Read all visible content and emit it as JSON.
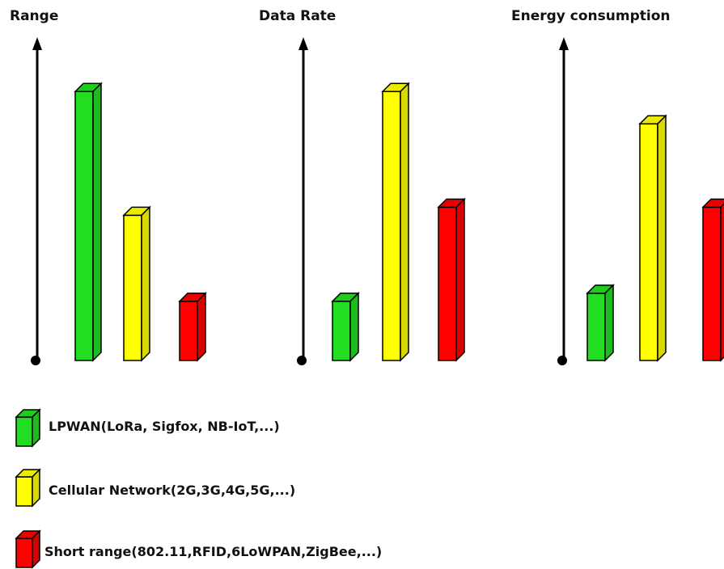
{
  "legend": [
    {
      "label": "LPWAN(LoRa, Sigfox, NB-IoT,...)",
      "color": "#22dd22",
      "icon": "green-cube-icon"
    },
    {
      "label": "Cellular Network(2G,3G,4G,5G,...)",
      "color": "#ffff00",
      "icon": "yellow-cube-icon"
    },
    {
      "label": "Short range(802.11,RFID,6LoWPAN,ZigBee,...)",
      "color": "#ff0000",
      "icon": "red-cube-icon"
    }
  ],
  "chart_data": [
    {
      "type": "bar",
      "title": "Range",
      "categories": [
        "LPWAN",
        "Cellular Network",
        "Short range"
      ],
      "values": [
        100,
        54,
        22
      ],
      "ylim": [
        0,
        110
      ],
      "grid": false,
      "legend_position": "bottom-left"
    },
    {
      "type": "bar",
      "title": "Data Rate",
      "categories": [
        "LPWAN",
        "Cellular Network",
        "Short range"
      ],
      "values": [
        22,
        100,
        57
      ],
      "ylim": [
        0,
        110
      ],
      "grid": false,
      "legend_position": "bottom-left"
    },
    {
      "type": "bar",
      "title": "Energy consumption",
      "categories": [
        "LPWAN",
        "Cellular Network",
        "Short range"
      ],
      "values": [
        25,
        88,
        57
      ],
      "ylim": [
        0,
        110
      ],
      "grid": false,
      "legend_position": "bottom-left"
    }
  ]
}
